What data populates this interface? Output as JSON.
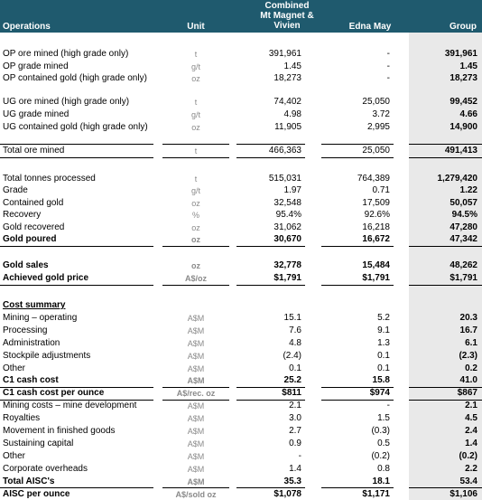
{
  "header": [
    "Operations",
    "Unit",
    "Combined\nMt Magnet &\nVivien",
    "Edna May",
    "Group"
  ],
  "sections": [
    [
      {
        "cells": [
          "OP ore mined (high grade only)",
          "t",
          "391,961",
          "-",
          "391,961"
        ]
      },
      {
        "cells": [
          "OP grade mined",
          "g/t",
          "1.45",
          "-",
          "1.45"
        ]
      },
      {
        "cells": [
          "OP contained gold (high grade only)",
          "oz",
          "18,273",
          "-",
          "18,273"
        ]
      }
    ],
    [
      {
        "cells": [
          "UG ore mined (high grade only)",
          "t",
          "74,402",
          "25,050",
          "99,452"
        ]
      },
      {
        "cells": [
          "UG grade mined",
          "g/t",
          "4.98",
          "3.72",
          "4.66"
        ]
      },
      {
        "cells": [
          "UG contained gold (high grade only)",
          "oz",
          "11,905",
          "2,995",
          "14,900"
        ]
      }
    ],
    [
      {
        "cells": [
          "Total ore mined",
          "t",
          "466,363",
          "25,050",
          "491,413"
        ],
        "style": "rule"
      }
    ],
    [
      {
        "cells": [
          "Total tonnes processed",
          "t",
          "515,031",
          "764,389",
          "1,279,420"
        ]
      },
      {
        "cells": [
          "Grade",
          "g/t",
          "1.97",
          "0.71",
          "1.22"
        ]
      },
      {
        "cells": [
          "Contained gold",
          "oz",
          "32,548",
          "17,509",
          "50,057"
        ]
      },
      {
        "cells": [
          "Recovery",
          "%",
          "95.4%",
          "92.6%",
          "94.5%"
        ]
      },
      {
        "cells": [
          "Gold recovered",
          "oz",
          "31,062",
          "16,218",
          "47,280"
        ]
      },
      {
        "cells": [
          "Gold poured",
          "oz",
          "30,670",
          "16,672",
          "47,342"
        ],
        "style": "total"
      }
    ],
    [
      {
        "cells": [
          "Gold sales",
          "oz",
          "32,778",
          "15,484",
          "48,262"
        ],
        "style": "bold"
      },
      {
        "cells": [
          "Achieved gold price",
          "A$/oz",
          "$1,791",
          "$1,791",
          "$1,791"
        ],
        "style": "total"
      }
    ],
    [
      {
        "cells": [
          "Cost summary"
        ],
        "style": "heading"
      },
      {
        "cells": [
          "Mining – operating",
          "A$M",
          "15.1",
          "5.2",
          "20.3"
        ]
      },
      {
        "cells": [
          "Processing",
          "A$M",
          "7.6",
          "9.1",
          "16.7"
        ]
      },
      {
        "cells": [
          "Administration",
          "A$M",
          "4.8",
          "1.3",
          "6.1"
        ]
      },
      {
        "cells": [
          "Stockpile adjustments",
          "A$M",
          "(2.4)",
          "0.1",
          "(2.3)"
        ]
      },
      {
        "cells": [
          "Other",
          "A$M",
          "0.1",
          "0.1",
          "0.2"
        ]
      },
      {
        "cells": [
          "C1 cash cost",
          "A$M",
          "25.2",
          "15.8",
          "41.0"
        ],
        "style": "total"
      },
      {
        "cells": [
          "C1 cash cost per ounce",
          "A$/rec. oz",
          "$811",
          "$974",
          "$867"
        ],
        "style": "total"
      },
      {
        "cells": [
          "Mining costs – mine development",
          "A$M",
          "2.1",
          "-",
          "2.1"
        ]
      },
      {
        "cells": [
          "Royalties",
          "A$M",
          "3.0",
          "1.5",
          "4.5"
        ]
      },
      {
        "cells": [
          "Movement in finished goods",
          "A$M",
          "2.7",
          "(0.3)",
          "2.4"
        ]
      },
      {
        "cells": [
          "Sustaining capital",
          "A$M",
          "0.9",
          "0.5",
          "1.4"
        ]
      },
      {
        "cells": [
          "Other",
          "A$M",
          "-",
          "(0.2)",
          "(0.2)"
        ]
      },
      {
        "cells": [
          "Corporate overheads",
          "A$M",
          "1.4",
          "0.8",
          "2.2"
        ]
      },
      {
        "cells": [
          "Total AISC's",
          "A$M",
          "35.3",
          "18.1",
          "53.4"
        ],
        "style": "total"
      },
      {
        "cells": [
          "AISC per ounce",
          "A$/sold oz",
          "$1,078",
          "$1,171",
          "$1,106"
        ],
        "style": "total"
      }
    ]
  ]
}
